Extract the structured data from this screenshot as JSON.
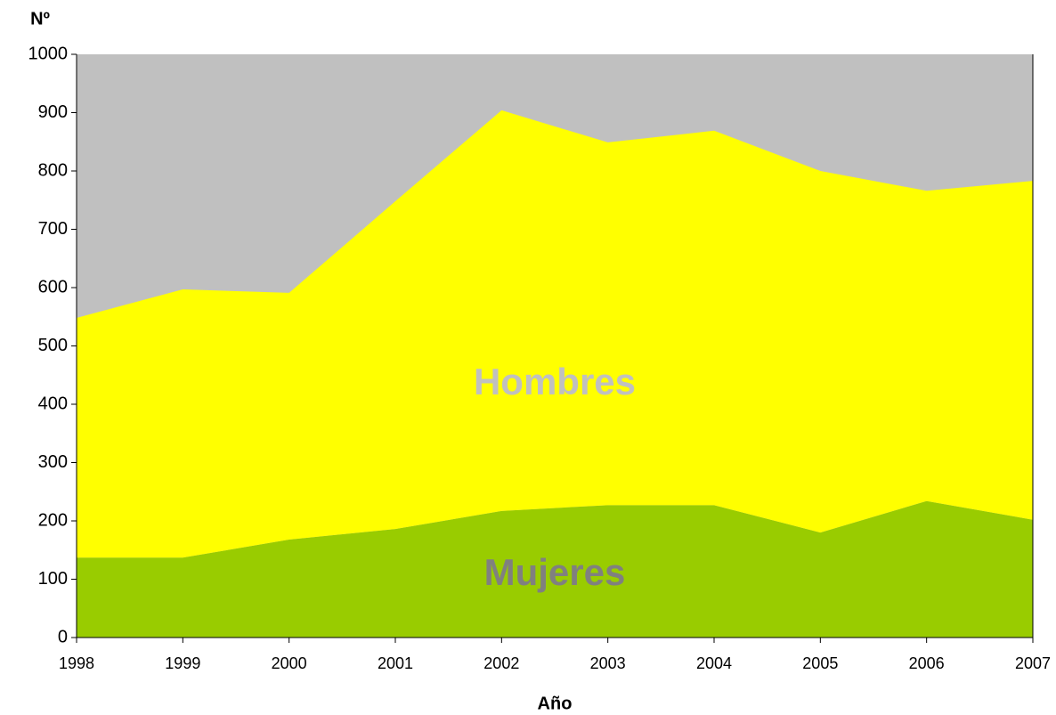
{
  "chart_data": {
    "type": "stacked_area",
    "x": [
      1998,
      1999,
      2000,
      2001,
      2002,
      2003,
      2004,
      2005,
      2006,
      2007
    ],
    "xlim": [
      1998,
      2007
    ],
    "series": [
      {
        "name": "Mujeres",
        "color": "#99cc00",
        "label_color": "#808080",
        "values": [
          137,
          137,
          168,
          186,
          217,
          227,
          227,
          180,
          234,
          202
        ]
      },
      {
        "name": "Hombres",
        "color": "#ffff00",
        "label_color": "#c0c0c0",
        "values": [
          411,
          460,
          423,
          562,
          687,
          622,
          642,
          620,
          532,
          581
        ]
      }
    ],
    "background": "#c0c0c0",
    "ylim": [
      0,
      1000
    ],
    "yticks": [
      0,
      100,
      200,
      300,
      400,
      500,
      600,
      700,
      800,
      900,
      1000
    ],
    "ylabel": "Nº",
    "xlabel": "Año"
  }
}
